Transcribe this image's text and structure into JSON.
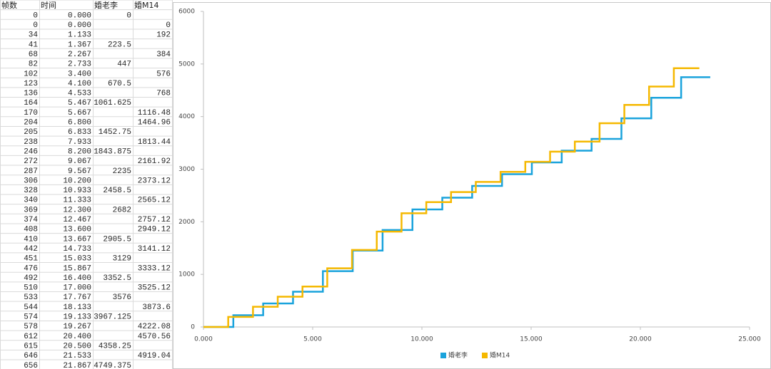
{
  "table": {
    "header": [
      "帧数",
      "时间",
      "婚老李",
      "婚M14"
    ],
    "rows": [
      [
        "0",
        "0.000",
        "0",
        null
      ],
      [
        "0",
        "0.000",
        null,
        "0"
      ],
      [
        "34",
        "1.133",
        null,
        "192"
      ],
      [
        "41",
        "1.367",
        "223.5",
        null
      ],
      [
        "68",
        "2.267",
        null,
        "384"
      ],
      [
        "82",
        "2.733",
        "447",
        null
      ],
      [
        "102",
        "3.400",
        null,
        "576"
      ],
      [
        "123",
        "4.100",
        "670.5",
        null
      ],
      [
        "136",
        "4.533",
        null,
        "768"
      ],
      [
        "164",
        "5.467",
        "1061.625",
        null
      ],
      [
        "170",
        "5.667",
        null,
        "1116.48"
      ],
      [
        "204",
        "6.800",
        null,
        "1464.96"
      ],
      [
        "205",
        "6.833",
        "1452.75",
        null
      ],
      [
        "238",
        "7.933",
        null,
        "1813.44"
      ],
      [
        "246",
        "8.200",
        "1843.875",
        null
      ],
      [
        "272",
        "9.067",
        null,
        "2161.92"
      ],
      [
        "287",
        "9.567",
        "2235",
        null
      ],
      [
        "306",
        "10.200",
        null,
        "2373.12"
      ],
      [
        "328",
        "10.933",
        "2458.5",
        null
      ],
      [
        "340",
        "11.333",
        null,
        "2565.12"
      ],
      [
        "369",
        "12.300",
        "2682",
        null
      ],
      [
        "374",
        "12.467",
        null,
        "2757.12"
      ],
      [
        "408",
        "13.600",
        null,
        "2949.12"
      ],
      [
        "410",
        "13.667",
        "2905.5",
        null
      ],
      [
        "442",
        "14.733",
        null,
        "3141.12"
      ],
      [
        "451",
        "15.033",
        "3129",
        null
      ],
      [
        "476",
        "15.867",
        null,
        "3333.12"
      ],
      [
        "492",
        "16.400",
        "3352.5",
        null
      ],
      [
        "510",
        "17.000",
        null,
        "3525.12"
      ],
      [
        "533",
        "17.767",
        "3576",
        null
      ],
      [
        "544",
        "18.133",
        null,
        "3873.6"
      ],
      [
        "574",
        "19.133",
        "3967.125",
        null
      ],
      [
        "578",
        "19.267",
        null,
        "4222.08"
      ],
      [
        "612",
        "20.400",
        null,
        "4570.56"
      ],
      [
        "615",
        "20.500",
        "4358.25",
        null
      ],
      [
        "646",
        "21.533",
        null,
        "4919.04"
      ],
      [
        "656",
        "21.867",
        "4749.375",
        null
      ]
    ]
  },
  "chart_data": {
    "type": "step",
    "series": [
      {
        "name": "婚老李",
        "color": "#1aa3dc",
        "x": [
          0,
          1.367,
          2.733,
          4.1,
          5.467,
          6.833,
          8.2,
          9.567,
          10.933,
          12.3,
          13.667,
          15.033,
          16.4,
          17.767,
          19.133,
          20.5,
          21.867,
          23.2
        ],
        "values": [
          0,
          223.5,
          447,
          670.5,
          1061.625,
          1452.75,
          1843.875,
          2235,
          2458.5,
          2682,
          2905.5,
          3129,
          3352.5,
          3576,
          3967.125,
          4358.25,
          4749.375,
          4749.375
        ]
      },
      {
        "name": "婚M14",
        "color": "#f5b800",
        "x": [
          0,
          1.133,
          2.267,
          3.4,
          4.533,
          5.667,
          6.8,
          7.933,
          9.067,
          10.2,
          11.333,
          12.467,
          13.6,
          14.733,
          15.867,
          17,
          18.133,
          19.267,
          20.4,
          21.533,
          22.7
        ],
        "values": [
          0,
          192,
          384,
          576,
          768,
          1116.48,
          1464.96,
          1813.44,
          2161.92,
          2373.12,
          2565.12,
          2757.12,
          2949.12,
          3141.12,
          3333.12,
          3525.12,
          3873.6,
          4222.08,
          4570.56,
          4919.04,
          4919.04
        ]
      }
    ],
    "xlim": [
      0,
      25
    ],
    "xticks": [
      {
        "value": 0,
        "label": "0.000"
      },
      {
        "value": 5,
        "label": "5.000"
      },
      {
        "value": 10,
        "label": "10.000"
      },
      {
        "value": 15,
        "label": "15.000"
      },
      {
        "value": 20,
        "label": "20.000"
      },
      {
        "value": 25,
        "label": "25.000"
      }
    ],
    "ylim": [
      0,
      6000
    ],
    "yticks": [
      0,
      1000,
      2000,
      3000,
      4000,
      5000,
      6000
    ],
    "legend": "bottom"
  }
}
